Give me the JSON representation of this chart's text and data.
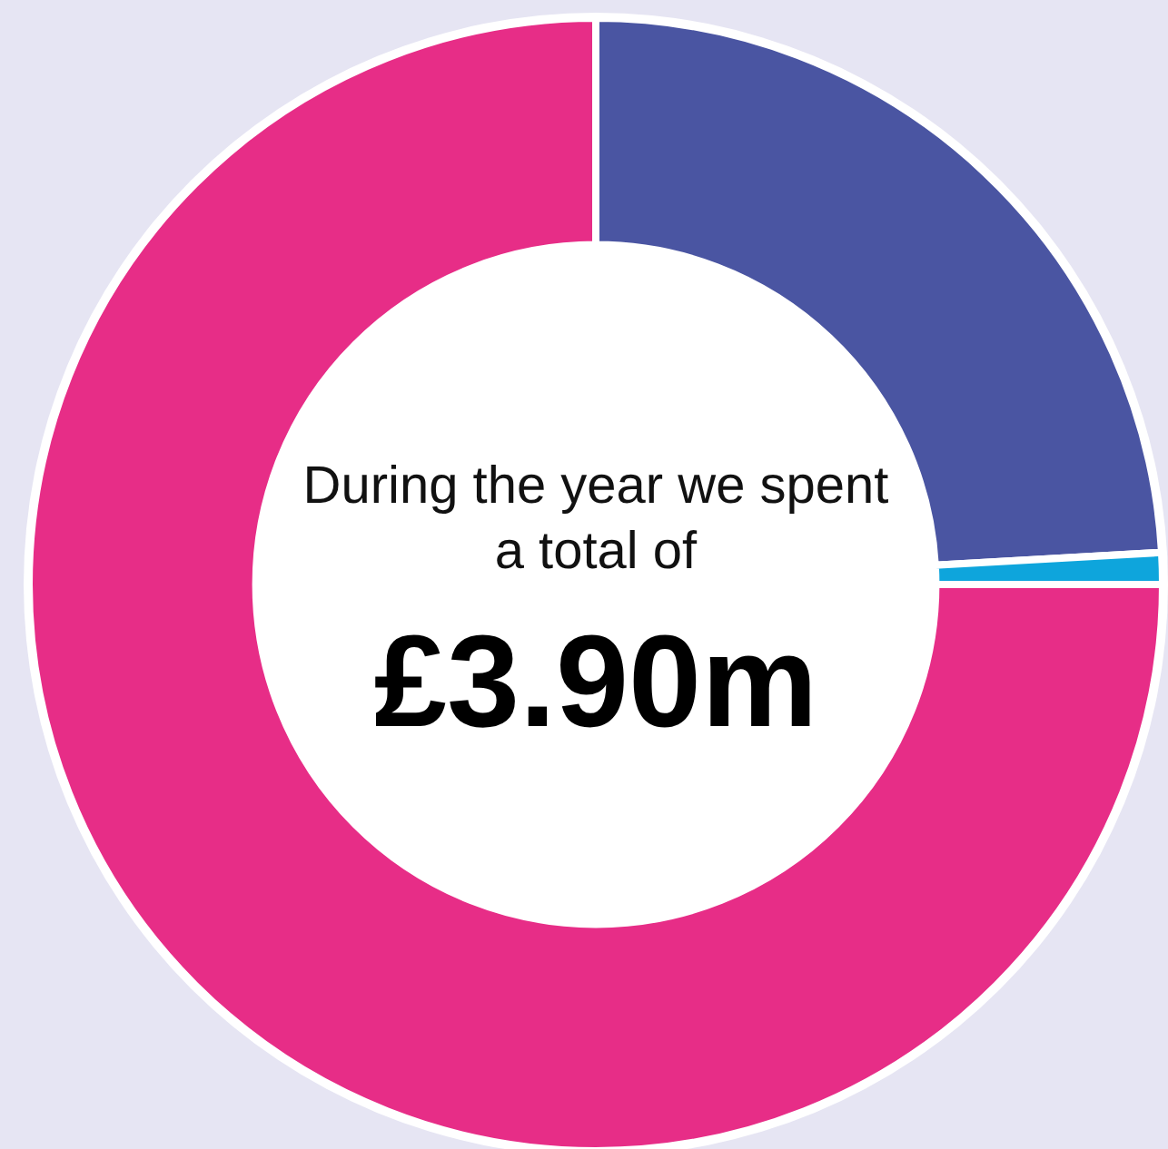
{
  "chart_data": {
    "type": "donut",
    "categories": [
      null,
      null,
      null
    ],
    "values": [
      24.1,
      0.9,
      75.0
    ],
    "colors": [
      "#4a55a2",
      "#0ea5dc",
      "#e72d87"
    ],
    "annotations": [
      "During the year we spent a total of",
      "£3.90m"
    ]
  }
}
